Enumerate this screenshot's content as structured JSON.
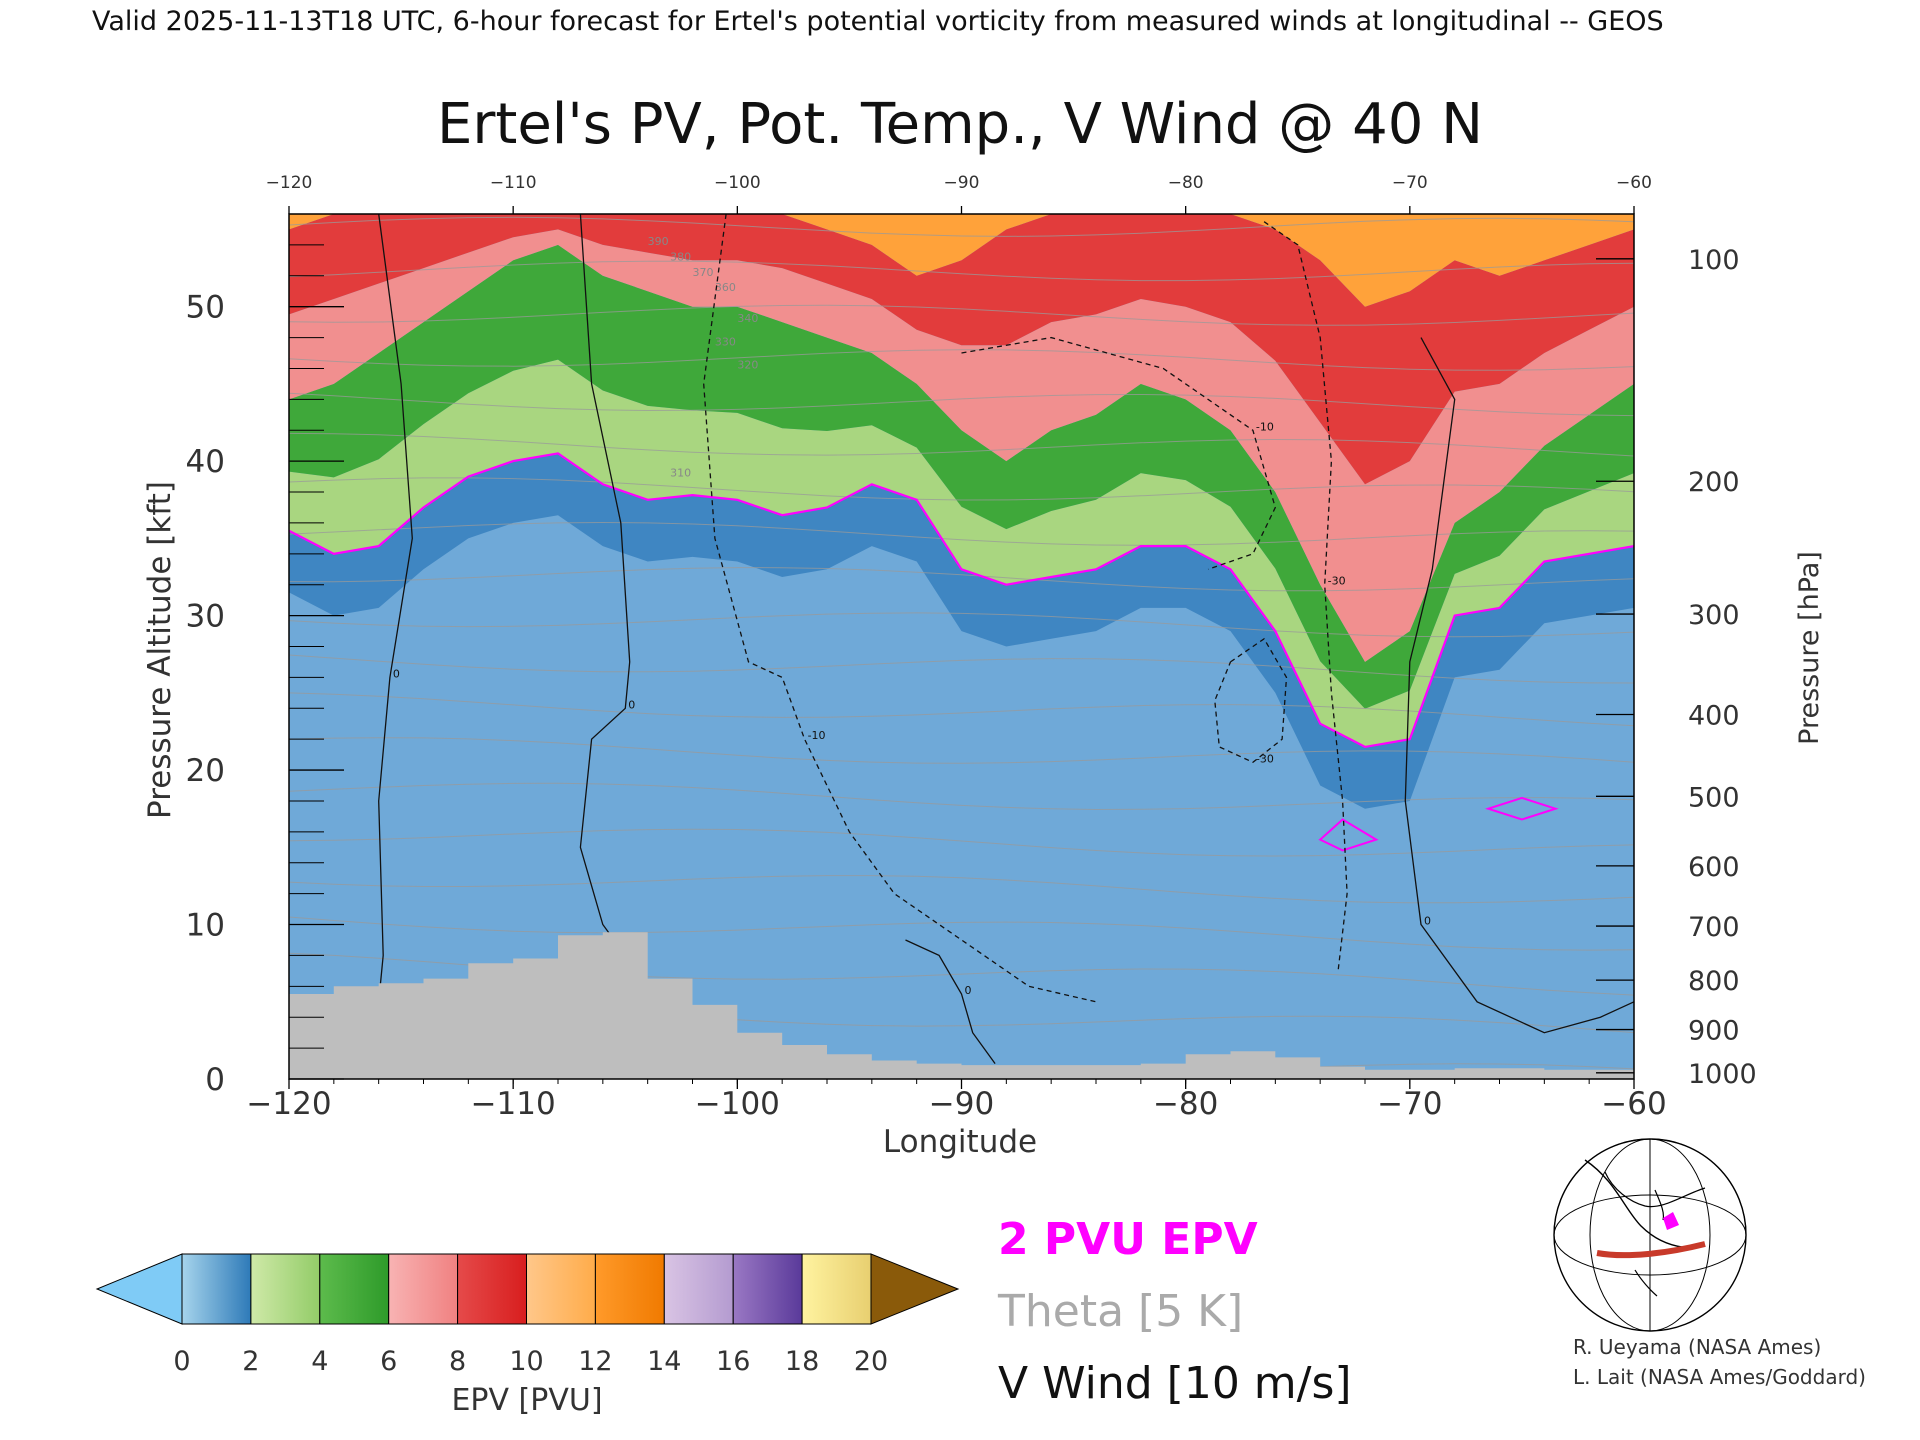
{
  "header": "Valid 2025-11-13T18 UTC, 6-hour forecast for Ertel's potential vorticity from measured winds at longitudinal -- GEOS",
  "chart_data": {
    "type": "heatmap",
    "title": "Ertel's PV, Pot. Temp., V Wind @ 40 N",
    "xlabel": "Longitude",
    "ylabel_left": "Pressure Altitude [kft]",
    "ylabel_right": "Pressure [hPa]",
    "x_range": [
      -120,
      -60
    ],
    "x_ticks": [
      -120,
      -110,
      -100,
      -90,
      -80,
      -70,
      -60
    ],
    "y_range_kft": [
      0,
      56
    ],
    "y_ticks_kft": [
      0,
      10,
      20,
      30,
      40,
      50
    ],
    "pressure_ticks": [
      {
        "hpa": 100,
        "kft": 53.1
      },
      {
        "hpa": 200,
        "kft": 38.7
      },
      {
        "hpa": 300,
        "kft": 30.1
      },
      {
        "hpa": 400,
        "kft": 23.6
      },
      {
        "hpa": 500,
        "kft": 18.3
      },
      {
        "hpa": 600,
        "kft": 13.8
      },
      {
        "hpa": 700,
        "kft": 9.9
      },
      {
        "hpa": 800,
        "kft": 6.4
      },
      {
        "hpa": 900,
        "kft": 3.2
      },
      {
        "hpa": 1000,
        "kft": 0.4
      }
    ],
    "epv_boundaries": {
      "x": [
        -120,
        -118,
        -116,
        -114,
        -112,
        -110,
        -108,
        -106,
        -104,
        -102,
        -100,
        -98,
        -96,
        -94,
        -92,
        -90,
        -88,
        -86,
        -84,
        -82,
        -80,
        -78,
        -76,
        -74,
        -72,
        -70,
        -68,
        -66,
        -64,
        -62,
        -60
      ],
      "pv2_kft": [
        35.5,
        34,
        34.5,
        37,
        39,
        40,
        40.5,
        38.5,
        37.5,
        37.8,
        37.5,
        36.5,
        37,
        38.5,
        37.5,
        33,
        32,
        32.5,
        33,
        34.5,
        34.5,
        33,
        29,
        23,
        21.5,
        22,
        30,
        30.5,
        33.5,
        34,
        34.5
      ],
      "pv6_kft": [
        44,
        45,
        47,
        49,
        51,
        53,
        54,
        52,
        51,
        50,
        50,
        49,
        48,
        47,
        45,
        42,
        40,
        42,
        43,
        45,
        44,
        42,
        38,
        32,
        27,
        29,
        36,
        38,
        41,
        43,
        45
      ],
      "pv10_kft": [
        55,
        56,
        56,
        56,
        56,
        56,
        56,
        56,
        56,
        56,
        56,
        56,
        55,
        54,
        52,
        53,
        55,
        56,
        56,
        56,
        56,
        56,
        55,
        53,
        50,
        51,
        53,
        52,
        53,
        54,
        55
      ]
    },
    "terrain_kft": [
      [
        -120,
        5.5
      ],
      [
        -118,
        6
      ],
      [
        -116,
        6.2
      ],
      [
        -114,
        6.5
      ],
      [
        -112,
        7.5
      ],
      [
        -110,
        7.8
      ],
      [
        -108,
        9.3
      ],
      [
        -106,
        9.5
      ],
      [
        -104,
        6.5
      ],
      [
        -102,
        4.8
      ],
      [
        -100,
        3.0
      ],
      [
        -98,
        2.2
      ],
      [
        -96,
        1.6
      ],
      [
        -94,
        1.2
      ],
      [
        -92,
        1.0
      ],
      [
        -90,
        0.9
      ],
      [
        -88,
        0.9
      ],
      [
        -86,
        0.9
      ],
      [
        -84,
        0.9
      ],
      [
        -82,
        1.0
      ],
      [
        -80,
        1.6
      ],
      [
        -78,
        1.8
      ],
      [
        -76,
        1.4
      ],
      [
        -74,
        0.8
      ],
      [
        -72,
        0.6
      ],
      [
        -70,
        0.6
      ],
      [
        -68,
        0.7
      ],
      [
        -66,
        0.7
      ],
      [
        -64,
        0.6
      ],
      [
        -62,
        0.6
      ],
      [
        -60,
        0.6
      ]
    ],
    "v_wind_contours": [
      {
        "label": "0",
        "style": "solid",
        "points": [
          [
            -116,
            56
          ],
          [
            -115,
            45
          ],
          [
            -114.5,
            35
          ],
          [
            -115.5,
            26
          ],
          [
            -116,
            18
          ],
          [
            -115.8,
            8
          ],
          [
            -116,
            5
          ]
        ]
      },
      {
        "label": "0",
        "style": "solid",
        "points": [
          [
            -107,
            56
          ],
          [
            -106.5,
            45
          ],
          [
            -105.2,
            36
          ],
          [
            -104.8,
            27
          ],
          [
            -105,
            24
          ],
          [
            -106.5,
            22
          ],
          [
            -107,
            15
          ],
          [
            -106,
            10
          ],
          [
            -104.5,
            7
          ]
        ]
      },
      {
        "label": "0",
        "style": "solid",
        "points": [
          [
            -92.5,
            9
          ],
          [
            -91,
            8
          ],
          [
            -90,
            5.5
          ],
          [
            -89.5,
            3
          ],
          [
            -88.5,
            1
          ]
        ]
      },
      {
        "label": "0",
        "style": "solid",
        "points": [
          [
            -69.5,
            48
          ],
          [
            -68,
            44
          ],
          [
            -69,
            33
          ],
          [
            -70,
            27
          ],
          [
            -70.2,
            18
          ],
          [
            -69.5,
            10
          ],
          [
            -67,
            5
          ],
          [
            -64,
            3
          ],
          [
            -61.5,
            4
          ],
          [
            -60,
            5
          ]
        ]
      },
      {
        "label": "-10",
        "style": "dashed",
        "points": [
          [
            -100.5,
            56
          ],
          [
            -101.5,
            45
          ],
          [
            -101,
            35
          ],
          [
            -99.5,
            27
          ],
          [
            -98,
            26
          ],
          [
            -97,
            22
          ],
          [
            -95,
            16
          ],
          [
            -93,
            12
          ],
          [
            -91,
            10
          ],
          [
            -87,
            6
          ],
          [
            -84,
            5
          ]
        ]
      },
      {
        "label": "-30",
        "style": "dashed",
        "points": [
          [
            -78,
            27
          ],
          [
            -76.5,
            28.5
          ],
          [
            -75.5,
            26
          ],
          [
            -75.7,
            22
          ],
          [
            -77,
            20.5
          ],
          [
            -78.5,
            21.5
          ],
          [
            -78.7,
            24.5
          ],
          [
            -78,
            27
          ]
        ]
      },
      {
        "label": "-10",
        "style": "dashed",
        "points": [
          [
            -90,
            47
          ],
          [
            -86,
            48
          ],
          [
            -81,
            46
          ],
          [
            -77,
            42
          ],
          [
            -76,
            37
          ],
          [
            -77,
            34
          ],
          [
            -79,
            33
          ]
        ]
      },
      {
        "label": "-30",
        "style": "dashed",
        "points": [
          [
            -76.5,
            55.5
          ],
          [
            -75,
            54
          ],
          [
            -74,
            48
          ],
          [
            -73.5,
            40
          ],
          [
            -73.8,
            32
          ],
          [
            -73.5,
            25
          ],
          [
            -73,
            18
          ],
          [
            -72.8,
            12
          ],
          [
            -73.2,
            7
          ]
        ]
      }
    ],
    "theta_labels": [
      "310",
      "320",
      "330",
      "340",
      "360",
      "370",
      "380",
      "390"
    ],
    "epv_colorbar": {
      "label": "EPV [PVU]",
      "ticks": [
        0,
        2,
        4,
        6,
        8,
        10,
        12,
        14,
        16,
        18,
        20
      ],
      "colors": [
        [
          "#a6d4ec",
          "#2e7ab8"
        ],
        [
          "#cfe9a8",
          "#93cc68"
        ],
        [
          "#5dbb4c",
          "#2e9b2a"
        ],
        [
          "#f8b3b3",
          "#f08181"
        ],
        [
          "#e54a4a",
          "#d81e1e"
        ],
        [
          "#ffc78a",
          "#ffac4a"
        ],
        [
          "#ff9a2a",
          "#f07a00"
        ],
        [
          "#d9c4e4",
          "#b49bd0"
        ],
        [
          "#9a78c4",
          "#5a3a9a"
        ],
        [
          "#fff3a0",
          "#e8cf70"
        ]
      ],
      "under_color": "#7fcbf6",
      "over_color": "#8a5a0a"
    },
    "legend": [
      {
        "text": "2 PVU EPV",
        "color": "#ff00ff"
      },
      {
        "text": "Theta [5 K]",
        "color": "#aaaaaa"
      },
      {
        "text": "V Wind [10 m/s]",
        "color": "#111111"
      }
    ]
  },
  "colors": {
    "terrain": "#bebebe",
    "pv2_line": "#ff00ff",
    "theta_line": "#9a9a9a"
  },
  "credits": {
    "line1": "R. Ueyama (NASA Ames)",
    "line2": "L. Lait (NASA Ames/Goddard)"
  },
  "map_inset": {
    "icon": "globe-map-icon",
    "track_color": "#c83a2a",
    "marker_color": "#ff00ff"
  }
}
